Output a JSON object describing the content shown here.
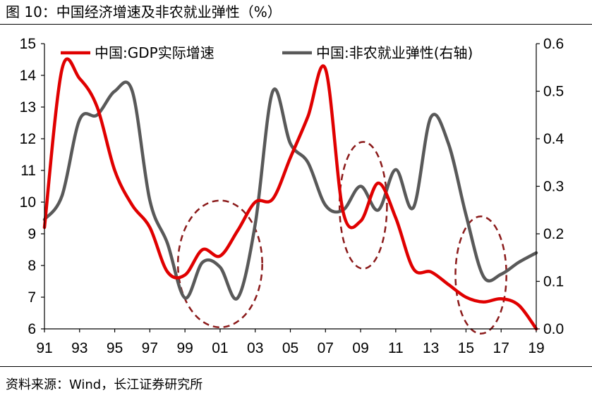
{
  "figure": {
    "title": "图 10：中国经济增速及非农就业弹性（%）",
    "source": "资料来源：Wind，长江证券研究所"
  },
  "chart_data": {
    "type": "line",
    "x_tick_labels": [
      "91",
      "93",
      "95",
      "97",
      "99",
      "01",
      "03",
      "05",
      "07",
      "09",
      "11",
      "13",
      "15",
      "17",
      "19"
    ],
    "x_range": [
      1991,
      2019
    ],
    "y_left": {
      "range": [
        6,
        15
      ],
      "ticks": [
        "6",
        "7",
        "8",
        "9",
        "10",
        "11",
        "12",
        "13",
        "14",
        "15"
      ]
    },
    "y_right": {
      "range": [
        0.0,
        0.6
      ],
      "ticks": [
        "0.0",
        "0.1",
        "0.2",
        "0.3",
        "0.4",
        "0.5",
        "0.6"
      ]
    },
    "grid": false,
    "legend_position": "top",
    "series": [
      {
        "name": "中国:GDP实际增速",
        "axis": "left",
        "color": "#e00000",
        "points": [
          [
            1991,
            9.2
          ],
          [
            1992,
            14.2
          ],
          [
            1993,
            13.9
          ],
          [
            1994,
            13.0
          ],
          [
            1995,
            11.0
          ],
          [
            1996,
            9.9
          ],
          [
            1997,
            9.2
          ],
          [
            1998,
            7.8
          ],
          [
            1999,
            7.7
          ],
          [
            2000,
            8.5
          ],
          [
            2001,
            8.3
          ],
          [
            2002,
            9.1
          ],
          [
            2003,
            10.0
          ],
          [
            2004,
            10.1
          ],
          [
            2005,
            11.4
          ],
          [
            2006,
            12.7
          ],
          [
            2007,
            14.2
          ],
          [
            2008,
            9.7
          ],
          [
            2009,
            9.4
          ],
          [
            2010,
            10.6
          ],
          [
            2011,
            9.5
          ],
          [
            2012,
            7.9
          ],
          [
            2013,
            7.8
          ],
          [
            2014,
            7.4
          ],
          [
            2015,
            7.0
          ],
          [
            2016,
            6.85
          ],
          [
            2017,
            6.95
          ],
          [
            2018,
            6.75
          ],
          [
            2019,
            6.0
          ]
        ]
      },
      {
        "name": "中国:非农就业弹性(右轴)",
        "axis": "right",
        "color": "#595959",
        "points": [
          [
            1991,
            0.23
          ],
          [
            1992,
            0.28
          ],
          [
            1993,
            0.44
          ],
          [
            1994,
            0.45
          ],
          [
            1995,
            0.5
          ],
          [
            1996,
            0.5
          ],
          [
            1997,
            0.27
          ],
          [
            1998,
            0.18
          ],
          [
            1999,
            0.065
          ],
          [
            2000,
            0.14
          ],
          [
            2001,
            0.13
          ],
          [
            2002,
            0.065
          ],
          [
            2003,
            0.22
          ],
          [
            2004,
            0.5
          ],
          [
            2005,
            0.39
          ],
          [
            2006,
            0.35
          ],
          [
            2007,
            0.26
          ],
          [
            2008,
            0.25
          ],
          [
            2009,
            0.3
          ],
          [
            2010,
            0.25
          ],
          [
            2011,
            0.335
          ],
          [
            2012,
            0.255
          ],
          [
            2013,
            0.445
          ],
          [
            2014,
            0.39
          ],
          [
            2015,
            0.24
          ],
          [
            2016,
            0.11
          ],
          [
            2017,
            0.115
          ],
          [
            2018,
            0.14
          ],
          [
            2019,
            0.16
          ]
        ]
      }
    ],
    "annotations": [
      {
        "type": "dashed-ellipse",
        "color": "#8b1a1a",
        "x_range": [
          1998.6,
          2003.4
        ],
        "y_left_range": [
          6.05,
          10.05
        ]
      },
      {
        "type": "dashed-ellipse",
        "color": "#8b1a1a",
        "x_range": [
          2007.8,
          2010.5
        ],
        "y_left_range": [
          7.9,
          11.9
        ]
      },
      {
        "type": "dashed-ellipse",
        "color": "#8b1a1a",
        "x_range": [
          2014.4,
          2017.3
        ],
        "y_left_range": [
          5.85,
          9.55
        ]
      }
    ]
  }
}
